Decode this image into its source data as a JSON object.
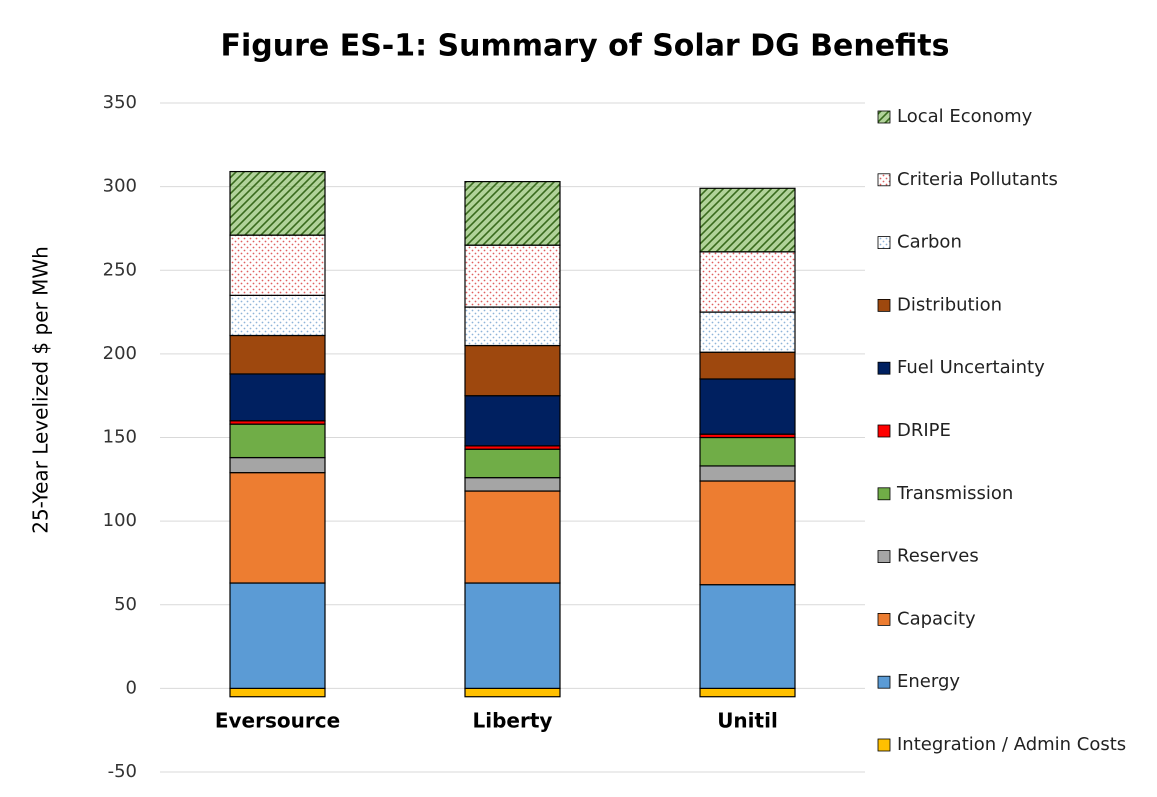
{
  "chart_data": {
    "type": "stacked_bar",
    "title": "Figure ES-1:  Summary of Solar DG Benefits",
    "y_label": "25-Year Levelized $ per MWh",
    "categories": [
      "Eversource",
      "Liberty",
      "Unitil"
    ],
    "ylim": [
      -50,
      350
    ],
    "yticks": [
      -50,
      0,
      50,
      100,
      150,
      200,
      250,
      300,
      350
    ],
    "grid": true,
    "legend": "right",
    "series": [
      {
        "name": "Integration / Admin Costs",
        "color": "#ffc000",
        "values": [
          -5,
          -5,
          -5
        ]
      },
      {
        "name": "Energy",
        "color": "#5b9bd5",
        "values": [
          63,
          63,
          62
        ]
      },
      {
        "name": "Capacity",
        "color": "#ed7d31",
        "values": [
          66,
          55,
          62
        ]
      },
      {
        "name": "Reserves",
        "color": "#a5a5a5",
        "values": [
          9,
          8,
          9
        ]
      },
      {
        "name": "Transmission",
        "color": "#70ad47",
        "values": [
          20,
          17,
          17
        ]
      },
      {
        "name": "DRIPE",
        "color": "#ff0000",
        "values": [
          2,
          2,
          2
        ]
      },
      {
        "name": "Fuel Uncertainty",
        "color": "#002060",
        "values": [
          28,
          30,
          33
        ]
      },
      {
        "name": "Distribution",
        "color": "#9e480e",
        "values": [
          23,
          30,
          16
        ]
      },
      {
        "name": "Carbon",
        "color": "#8fb4d9",
        "pattern": "dots",
        "values": [
          24,
          23,
          24
        ]
      },
      {
        "name": "Criteria Pollutants",
        "color": "#e06060",
        "pattern": "dots",
        "values": [
          36,
          37,
          36
        ]
      },
      {
        "name": "Local Economy",
        "color": "#70ad47",
        "pattern": "hatch",
        "values": [
          38,
          38,
          38
        ]
      }
    ]
  }
}
